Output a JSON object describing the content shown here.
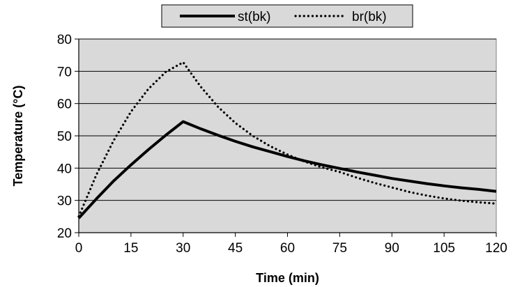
{
  "chart_data": {
    "type": "line",
    "xlabel": "Time (min)",
    "ylabel": "Temperature (°C)",
    "xlim": [
      0,
      120
    ],
    "ylim": [
      20,
      80
    ],
    "xticks": [
      0,
      15,
      30,
      45,
      60,
      75,
      90,
      105,
      120
    ],
    "yticks": [
      20,
      30,
      40,
      50,
      60,
      70,
      80
    ],
    "grid": "horizontal",
    "legend_position": "top",
    "colors": {
      "plot_bg": "#d9d9d9",
      "line": "#000000",
      "legend_bg": "#d9d9d9"
    },
    "series": [
      {
        "name": "st(bk)",
        "style": "solid",
        "x": [
          0,
          5,
          10,
          15,
          20,
          25,
          30,
          35,
          40,
          45,
          50,
          55,
          60,
          65,
          70,
          75,
          80,
          85,
          90,
          95,
          100,
          105,
          110,
          115,
          120
        ],
        "y": [
          24.5,
          30.4,
          36.0,
          41.0,
          45.7,
          50.2,
          54.4,
          52.2,
          50.2,
          48.3,
          46.6,
          45.1,
          43.6,
          42.2,
          41.0,
          39.9,
          38.8,
          37.8,
          36.8,
          36.0,
          35.2,
          34.5,
          33.9,
          33.4,
          32.8
        ]
      },
      {
        "name": "br(bk)",
        "style": "dotted",
        "x": [
          0,
          5,
          10,
          15,
          20,
          25,
          30,
          35,
          40,
          45,
          50,
          55,
          60,
          65,
          70,
          75,
          80,
          85,
          90,
          95,
          100,
          105,
          110,
          115,
          120
        ],
        "y": [
          25.0,
          37.8,
          48.5,
          57.5,
          64.5,
          69.8,
          72.8,
          65.3,
          59.0,
          54.0,
          50.0,
          46.8,
          44.2,
          42.0,
          40.2,
          38.8,
          37.0,
          35.4,
          34.0,
          32.6,
          31.5,
          30.6,
          29.9,
          29.4,
          29.0
        ]
      }
    ]
  }
}
